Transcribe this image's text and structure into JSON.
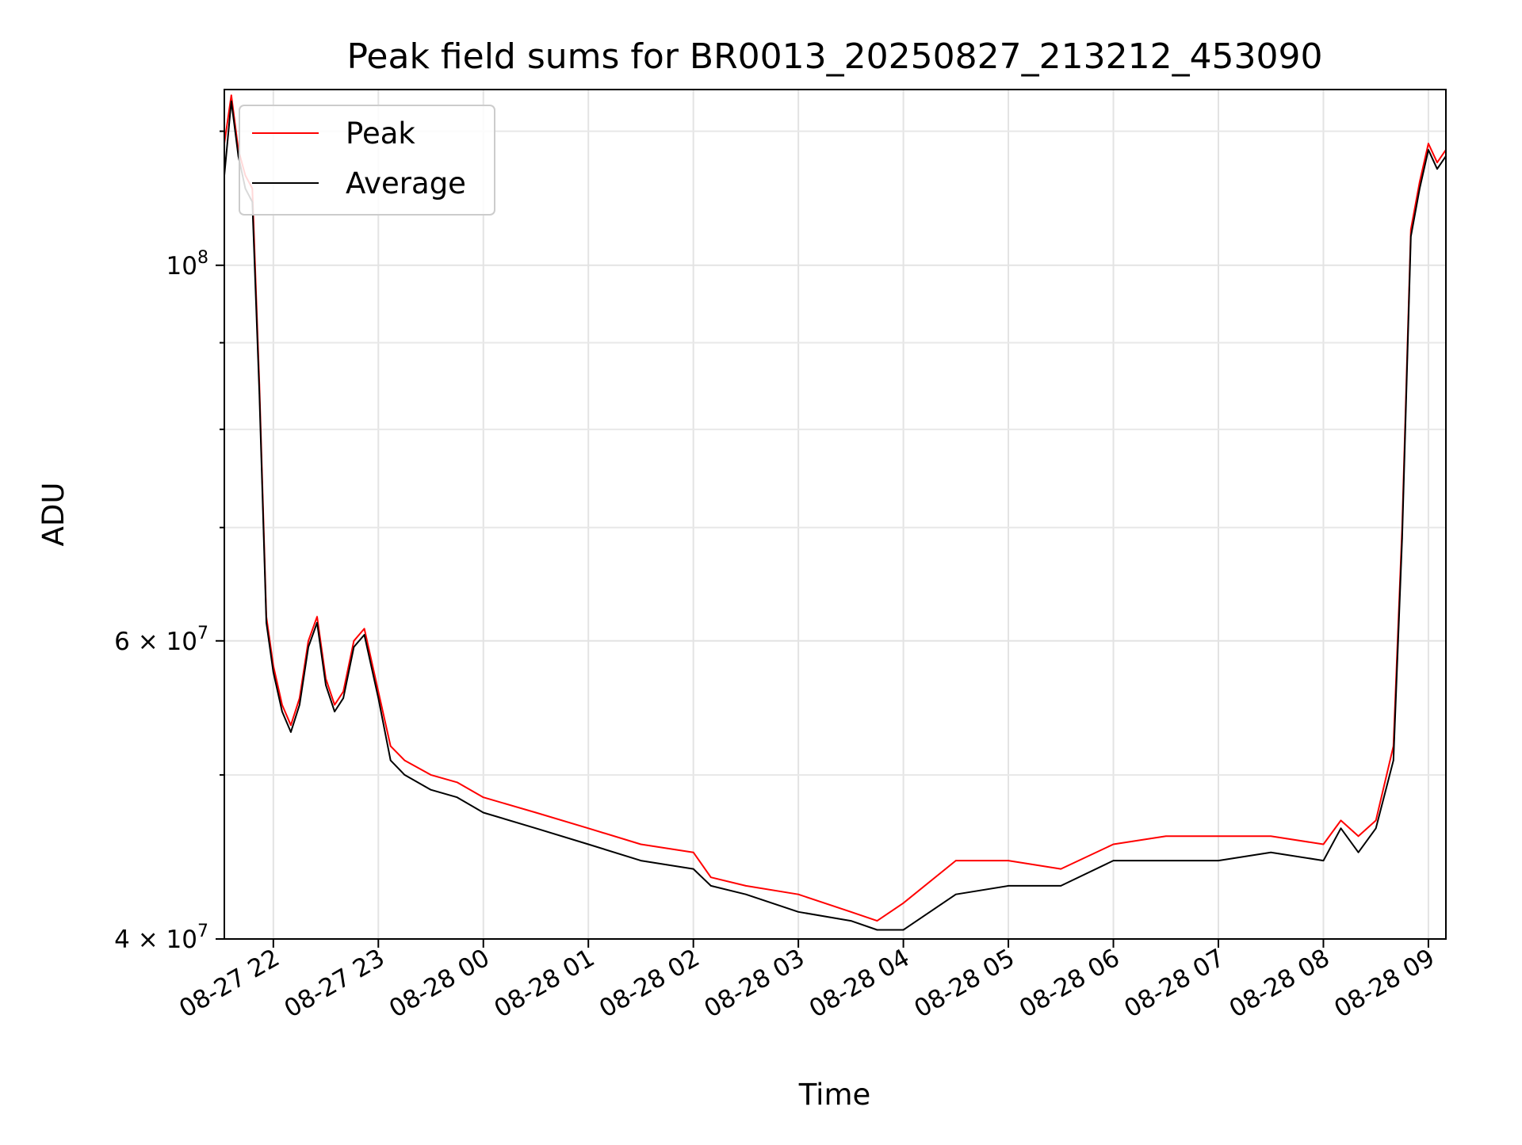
{
  "chart_data": {
    "type": "line",
    "title": "Peak field sums for BR0013_20250827_213212_453090",
    "xlabel": "Time",
    "ylabel": "ADU",
    "yscale": "log",
    "ylim": [
      40000000,
      127000000
    ],
    "xlim": [
      "2025-08-27 21:32",
      "2025-08-28 09:10"
    ],
    "grid": true,
    "legend_position": "top-left",
    "x_ticks": [
      "08-27 22",
      "08-27 23",
      "08-28 00",
      "08-28 01",
      "08-28 02",
      "08-28 03",
      "08-28 04",
      "08-28 05",
      "08-28 06",
      "08-28 07",
      "08-28 08",
      "08-28 09"
    ],
    "y_ticks": [
      {
        "value": 40000000,
        "mantissa": "4",
        "times": "×",
        "base": "10",
        "exp": "7"
      },
      {
        "value": 60000000,
        "mantissa": "6",
        "times": "×",
        "base": "10",
        "exp": "7"
      },
      {
        "value": 100000000,
        "mantissa": "",
        "times": "",
        "base": "10",
        "exp": "8"
      }
    ],
    "series": [
      {
        "name": "Peak",
        "color": "#ff0000",
        "x": [
          "2025-08-27 21:32",
          "2025-08-27 21:36",
          "2025-08-27 21:40",
          "2025-08-27 21:44",
          "2025-08-27 21:48",
          "2025-08-27 21:52",
          "2025-08-27 21:56",
          "2025-08-27 22:00",
          "2025-08-27 22:05",
          "2025-08-27 22:10",
          "2025-08-27 22:15",
          "2025-08-27 22:20",
          "2025-08-27 22:25",
          "2025-08-27 22:30",
          "2025-08-27 22:35",
          "2025-08-27 22:40",
          "2025-08-27 22:46",
          "2025-08-27 22:52",
          "2025-08-27 23:00",
          "2025-08-27 23:07",
          "2025-08-27 23:15",
          "2025-08-27 23:30",
          "2025-08-27 23:45",
          "2025-08-28 00:00",
          "2025-08-28 00:30",
          "2025-08-28 01:00",
          "2025-08-28 01:30",
          "2025-08-28 02:00",
          "2025-08-28 02:10",
          "2025-08-28 02:30",
          "2025-08-28 03:00",
          "2025-08-28 03:30",
          "2025-08-28 03:45",
          "2025-08-28 04:00",
          "2025-08-28 04:30",
          "2025-08-28 05:00",
          "2025-08-28 05:30",
          "2025-08-28 06:00",
          "2025-08-28 06:30",
          "2025-08-28 07:00",
          "2025-08-28 07:30",
          "2025-08-28 08:00",
          "2025-08-28 08:10",
          "2025-08-28 08:20",
          "2025-08-28 08:30",
          "2025-08-28 08:40",
          "2025-08-28 08:45",
          "2025-08-28 08:50",
          "2025-08-28 08:55",
          "2025-08-28 09:00",
          "2025-08-28 09:05",
          "2025-08-28 09:10"
        ],
        "values": [
          118000000,
          126000000,
          117000000,
          113000000,
          111000000,
          85000000,
          62000000,
          58000000,
          55000000,
          53500000,
          55500000,
          60000000,
          62000000,
          57000000,
          55000000,
          56000000,
          60000000,
          61000000,
          56000000,
          52000000,
          51000000,
          50000000,
          49500000,
          48500000,
          47500000,
          46500000,
          45500000,
          45000000,
          43500000,
          43000000,
          42500000,
          41500000,
          41000000,
          42000000,
          44500000,
          44500000,
          44000000,
          45500000,
          46000000,
          46000000,
          46000000,
          45500000,
          47000000,
          46000000,
          47000000,
          52000000,
          70000000,
          105000000,
          112000000,
          118000000,
          115000000,
          117000000
        ]
      },
      {
        "name": "Average",
        "color": "#000000",
        "x": [
          "2025-08-27 21:32",
          "2025-08-27 21:36",
          "2025-08-27 21:40",
          "2025-08-27 21:44",
          "2025-08-27 21:48",
          "2025-08-27 21:52",
          "2025-08-27 21:56",
          "2025-08-27 22:00",
          "2025-08-27 22:05",
          "2025-08-27 22:10",
          "2025-08-27 22:15",
          "2025-08-27 22:20",
          "2025-08-27 22:25",
          "2025-08-27 22:30",
          "2025-08-27 22:35",
          "2025-08-27 22:40",
          "2025-08-27 22:46",
          "2025-08-27 22:52",
          "2025-08-27 23:00",
          "2025-08-27 23:07",
          "2025-08-27 23:15",
          "2025-08-27 23:30",
          "2025-08-27 23:45",
          "2025-08-28 00:00",
          "2025-08-28 00:30",
          "2025-08-28 01:00",
          "2025-08-28 01:30",
          "2025-08-28 02:00",
          "2025-08-28 02:10",
          "2025-08-28 02:30",
          "2025-08-28 03:00",
          "2025-08-28 03:30",
          "2025-08-28 03:45",
          "2025-08-28 04:00",
          "2025-08-28 04:30",
          "2025-08-28 05:00",
          "2025-08-28 05:30",
          "2025-08-28 06:00",
          "2025-08-28 06:30",
          "2025-08-28 07:00",
          "2025-08-28 07:30",
          "2025-08-28 08:00",
          "2025-08-28 08:10",
          "2025-08-28 08:20",
          "2025-08-28 08:30",
          "2025-08-28 08:40",
          "2025-08-28 08:45",
          "2025-08-28 08:50",
          "2025-08-28 08:55",
          "2025-08-28 09:00",
          "2025-08-28 09:05",
          "2025-08-28 09:10"
        ],
        "values": [
          113000000,
          125000000,
          116000000,
          111000000,
          109000000,
          84000000,
          61500000,
          57500000,
          54500000,
          53000000,
          55000000,
          59500000,
          61500000,
          56500000,
          54500000,
          55500000,
          59500000,
          60500000,
          55500000,
          51000000,
          50000000,
          49000000,
          48500000,
          47500000,
          46500000,
          45500000,
          44500000,
          44000000,
          43000000,
          42500000,
          41500000,
          41000000,
          40500000,
          40500000,
          42500000,
          43000000,
          43000000,
          44500000,
          44500000,
          44500000,
          45000000,
          44500000,
          46500000,
          45000000,
          46500000,
          51000000,
          69000000,
          104000000,
          111000000,
          117000000,
          114000000,
          116000000
        ]
      }
    ]
  }
}
